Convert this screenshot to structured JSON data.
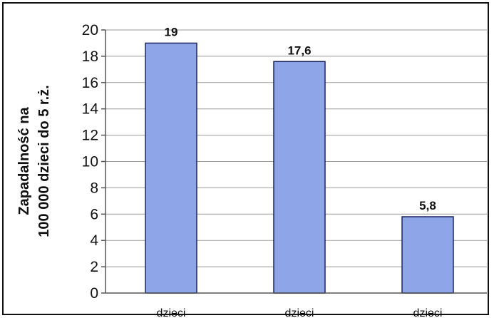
{
  "chart_data": {
    "type": "bar",
    "categories": [
      "dzieci",
      "dzieci",
      "dzieci"
    ],
    "values": [
      19,
      17.6,
      5.8
    ],
    "data_labels": [
      "19",
      "17,6",
      "5,8"
    ],
    "ylabel_lines": [
      "Zapadalność na",
      "100 000 dzieci do 5 r.ż."
    ],
    "ylim": [
      0,
      20
    ],
    "yticks": [
      0,
      2,
      4,
      6,
      8,
      10,
      12,
      14,
      16,
      18,
      20
    ],
    "grid": true,
    "bar_color": "#8ea6e8",
    "bar_border_color": "#1c2560"
  }
}
